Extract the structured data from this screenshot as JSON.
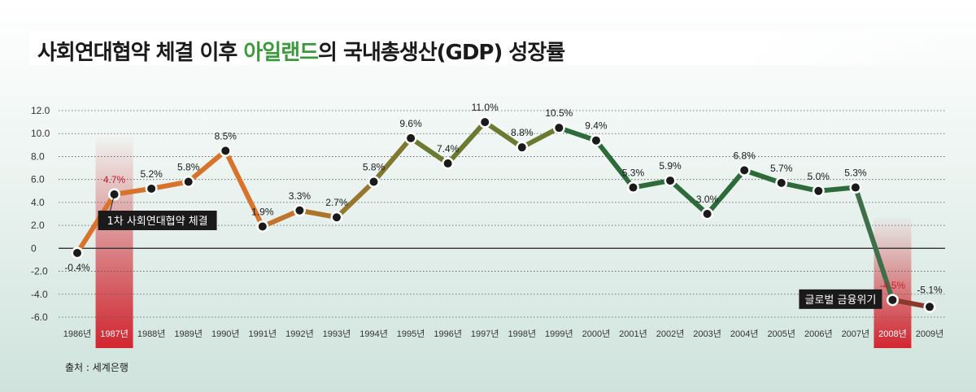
{
  "title": {
    "prefix": "사회연대협약 체결 이후 ",
    "highlight": "아일랜드",
    "suffix": "의 국내총생산(GDP) 성장률"
  },
  "source": "출처 : 세계은행",
  "chart_data": {
    "type": "line",
    "title": "사회연대협약 체결 이후 아일랜드의 국내총생산(GDP) 성장률",
    "categories": [
      "1986년",
      "1987년",
      "1988년",
      "1989년",
      "1990년",
      "1991년",
      "1992년",
      "1993년",
      "1994년",
      "1995년",
      "1996년",
      "1997년",
      "1998년",
      "1999년",
      "2000년",
      "2001년",
      "2002년",
      "2003년",
      "2004년",
      "2005년",
      "2006년",
      "2007년",
      "2008년",
      "2009년"
    ],
    "values": [
      -0.4,
      4.7,
      5.2,
      5.8,
      8.5,
      1.9,
      3.3,
      2.7,
      5.8,
      9.6,
      7.4,
      11.0,
      8.8,
      10.5,
      9.4,
      5.3,
      5.9,
      3.0,
      6.8,
      5.7,
      5.0,
      5.3,
      -4.5,
      -5.1
    ],
    "value_labels": [
      "-0.4%",
      "4.7%",
      "5.2%",
      "5.8%",
      "8.5%",
      "1.9%",
      "3.3%",
      "2.7%",
      "5.8%",
      "9.6%",
      "7.4%",
      "11.0%",
      "8.8%",
      "10.5%",
      "9.4%",
      "5.3%",
      "5.9%",
      "3.0%",
      "6.8%",
      "5.7%",
      "5.0%",
      "5.3%",
      "-4.5%",
      "-5.1%"
    ],
    "yticks": [
      "12.0",
      "10.0",
      "8.0",
      "6.0",
      "4.0",
      "2.0",
      "0",
      "-2.0",
      "-4.0",
      "-6.0"
    ],
    "ylim": [
      -6,
      12
    ],
    "highlighted_years": [
      "1987년",
      "2008년"
    ],
    "annotations": [
      {
        "year": "1987년",
        "text": "1차 사회연대협약 체결"
      },
      {
        "year": "2008년",
        "text": "글로벌 금융위기"
      }
    ],
    "colors": {
      "orange": "#d9722a",
      "olive": "#6b7a30",
      "green": "#2f6b3a",
      "red": "#c8202c",
      "highlight": "#d22630"
    }
  }
}
